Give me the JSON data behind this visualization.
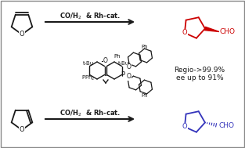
{
  "bg_color": "#ffffff",
  "border_color": "#888888",
  "black": "#1a1a1a",
  "red": "#cc0000",
  "blue": "#3333bb",
  "gray": "#888888",
  "top_arrow_text": "CO/H$_2$  & Rh-cat.",
  "bot_arrow_text": "CO/H$_2$  & Rh-cat.",
  "regio_line1": "Regio->99.9%",
  "regio_line2": "ee up to 91%",
  "figw": 3.13,
  "figh": 1.89,
  "dpi": 100
}
